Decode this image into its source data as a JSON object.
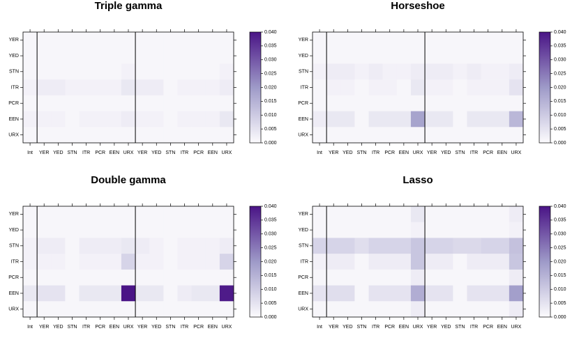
{
  "chart_data": [
    {
      "type": "heatmap",
      "title": "Triple gamma",
      "x": [
        "Int",
        "YER",
        "YED",
        "STN",
        "ITR",
        "PCR",
        "EEN",
        "URX",
        "YER",
        "YED",
        "STN",
        "ITR",
        "PCR",
        "EEN",
        "URX"
      ],
      "y": [
        "YER",
        "YED",
        "STN",
        "ITR",
        "PCR",
        "EEN",
        "URX"
      ],
      "values": [
        [
          0.001,
          0.001,
          0.001,
          0.001,
          0.001,
          0.001,
          0.001,
          0.001,
          0.001,
          0.001,
          0.001,
          0.001,
          0.001,
          0.001,
          0.001
        ],
        [
          0.001,
          0.001,
          0.001,
          0.001,
          0.001,
          0.001,
          0.001,
          0.001,
          0.001,
          0.001,
          0.001,
          0.001,
          0.001,
          0.001,
          0.001
        ],
        [
          0.001,
          0.001,
          0.001,
          0.001,
          0.001,
          0.001,
          0.001,
          0.002,
          0.001,
          0.001,
          0.001,
          0.001,
          0.001,
          0.001,
          0.002
        ],
        [
          0.002,
          0.003,
          0.003,
          0.002,
          0.002,
          0.002,
          0.002,
          0.004,
          0.003,
          0.003,
          0.001,
          0.002,
          0.002,
          0.002,
          0.003
        ],
        [
          0.001,
          0.001,
          0.001,
          0.001,
          0.001,
          0.001,
          0.001,
          0.001,
          0.001,
          0.001,
          0.001,
          0.001,
          0.001,
          0.001,
          0.001
        ],
        [
          0.002,
          0.002,
          0.002,
          0.001,
          0.002,
          0.002,
          0.002,
          0.003,
          0.002,
          0.002,
          0.001,
          0.002,
          0.002,
          0.002,
          0.004
        ],
        [
          0.001,
          0.001,
          0.001,
          0.001,
          0.001,
          0.001,
          0.001,
          0.001,
          0.001,
          0.001,
          0.001,
          0.001,
          0.001,
          0.001,
          0.001
        ]
      ],
      "zlim": [
        0,
        0.04
      ],
      "colors": [
        "#fcfbfd",
        "#9e9ac8",
        "#4a1486"
      ],
      "zticks": [
        {
          "value": 0,
          "label": "0.000"
        },
        {
          "value": 0.005,
          "label": "0.005"
        },
        {
          "value": 0.01,
          "label": "0.010"
        },
        {
          "value": 0.015,
          "label": "0.015"
        },
        {
          "value": 0.02,
          "label": "0.020"
        },
        {
          "value": 0.025,
          "label": "0.025"
        },
        {
          "value": 0.03,
          "label": "0.030"
        },
        {
          "value": 0.035,
          "label": "0.035"
        },
        {
          "value": 0.04,
          "label": "0.040"
        }
      ]
    },
    {
      "type": "heatmap",
      "title": "Horseshoe",
      "x": [
        "Int",
        "YER",
        "YED",
        "STN",
        "ITR",
        "PCR",
        "EEN",
        "URX",
        "YER",
        "YED",
        "STN",
        "ITR",
        "PCR",
        "EEN",
        "URX"
      ],
      "y": [
        "YER",
        "YED",
        "STN",
        "ITR",
        "PCR",
        "EEN",
        "URX"
      ],
      "values": [
        [
          0.001,
          0.001,
          0.001,
          0.001,
          0.001,
          0.001,
          0.001,
          0.001,
          0.001,
          0.001,
          0.001,
          0.001,
          0.001,
          0.001,
          0.001
        ],
        [
          0.001,
          0.001,
          0.001,
          0.001,
          0.001,
          0.001,
          0.001,
          0.001,
          0.001,
          0.001,
          0.001,
          0.001,
          0.001,
          0.001,
          0.001
        ],
        [
          0.002,
          0.003,
          0.003,
          0.002,
          0.003,
          0.002,
          0.002,
          0.003,
          0.003,
          0.003,
          0.002,
          0.003,
          0.002,
          0.002,
          0.003
        ],
        [
          0.001,
          0.002,
          0.002,
          0.001,
          0.002,
          0.002,
          0.001,
          0.004,
          0.002,
          0.002,
          0.001,
          0.002,
          0.002,
          0.002,
          0.005
        ],
        [
          0.001,
          0.001,
          0.001,
          0.001,
          0.001,
          0.001,
          0.001,
          0.001,
          0.001,
          0.001,
          0.001,
          0.001,
          0.001,
          0.001,
          0.001
        ],
        [
          0.003,
          0.004,
          0.004,
          0.001,
          0.004,
          0.004,
          0.004,
          0.018,
          0.004,
          0.004,
          0.001,
          0.004,
          0.004,
          0.004,
          0.014
        ],
        [
          0.001,
          0.001,
          0.001,
          0.001,
          0.001,
          0.001,
          0.001,
          0.001,
          0.001,
          0.001,
          0.001,
          0.001,
          0.001,
          0.001,
          0.001
        ]
      ],
      "zlim": [
        0,
        0.04
      ],
      "colors": [
        "#fcfbfd",
        "#9e9ac8",
        "#4a1486"
      ],
      "zticks": [
        {
          "value": 0,
          "label": "0.000"
        },
        {
          "value": 0.005,
          "label": "0.005"
        },
        {
          "value": 0.01,
          "label": "0.010"
        },
        {
          "value": 0.015,
          "label": "0.015"
        },
        {
          "value": 0.02,
          "label": "0.020"
        },
        {
          "value": 0.025,
          "label": "0.025"
        },
        {
          "value": 0.03,
          "label": "0.030"
        },
        {
          "value": 0.035,
          "label": "0.035"
        },
        {
          "value": 0.04,
          "label": "0.040"
        }
      ]
    },
    {
      "type": "heatmap",
      "title": "Double gamma",
      "x": [
        "Int",
        "YER",
        "YED",
        "STN",
        "ITR",
        "PCR",
        "EEN",
        "URX",
        "YER",
        "YED",
        "STN",
        "ITR",
        "PCR",
        "EEN",
        "URX"
      ],
      "y": [
        "YER",
        "YED",
        "STN",
        "ITR",
        "PCR",
        "EEN",
        "URX"
      ],
      "values": [
        [
          0.001,
          0.001,
          0.001,
          0.001,
          0.001,
          0.001,
          0.001,
          0.001,
          0.001,
          0.001,
          0.001,
          0.001,
          0.001,
          0.001,
          0.001
        ],
        [
          0.001,
          0.001,
          0.001,
          0.001,
          0.001,
          0.001,
          0.001,
          0.001,
          0.001,
          0.001,
          0.001,
          0.001,
          0.001,
          0.001,
          0.001
        ],
        [
          0.002,
          0.003,
          0.003,
          0.001,
          0.003,
          0.003,
          0.003,
          0.004,
          0.003,
          0.002,
          0.001,
          0.002,
          0.002,
          0.002,
          0.003
        ],
        [
          0.002,
          0.002,
          0.002,
          0.001,
          0.002,
          0.002,
          0.002,
          0.008,
          0.002,
          0.002,
          0.001,
          0.002,
          0.002,
          0.002,
          0.008
        ],
        [
          0.001,
          0.001,
          0.001,
          0.001,
          0.001,
          0.001,
          0.001,
          0.001,
          0.001,
          0.001,
          0.001,
          0.001,
          0.001,
          0.001,
          0.001
        ],
        [
          0.004,
          0.005,
          0.005,
          0.001,
          0.004,
          0.004,
          0.004,
          0.04,
          0.004,
          0.004,
          0.001,
          0.003,
          0.004,
          0.004,
          0.039
        ],
        [
          0.001,
          0.001,
          0.001,
          0.001,
          0.001,
          0.001,
          0.001,
          0.001,
          0.001,
          0.001,
          0.001,
          0.001,
          0.001,
          0.001,
          0.001
        ]
      ],
      "zlim": [
        0,
        0.04
      ],
      "colors": [
        "#fcfbfd",
        "#9e9ac8",
        "#4a1486"
      ],
      "zticks": [
        {
          "value": 0,
          "label": "0.000"
        },
        {
          "value": 0.005,
          "label": "0.005"
        },
        {
          "value": 0.01,
          "label": "0.010"
        },
        {
          "value": 0.015,
          "label": "0.015"
        },
        {
          "value": 0.02,
          "label": "0.020"
        },
        {
          "value": 0.025,
          "label": "0.025"
        },
        {
          "value": 0.03,
          "label": "0.030"
        },
        {
          "value": 0.035,
          "label": "0.035"
        },
        {
          "value": 0.04,
          "label": "0.040"
        }
      ]
    },
    {
      "type": "heatmap",
      "title": "Lasso",
      "x": [
        "Int",
        "YER",
        "YED",
        "STN",
        "ITR",
        "PCR",
        "EEN",
        "URX",
        "YER",
        "YED",
        "STN",
        "ITR",
        "PCR",
        "EEN",
        "URX"
      ],
      "y": [
        "YER",
        "YED",
        "STN",
        "ITR",
        "PCR",
        "EEN",
        "URX"
      ],
      "values": [
        [
          0.001,
          0.001,
          0.001,
          0.001,
          0.001,
          0.001,
          0.001,
          0.004,
          0.001,
          0.001,
          0.001,
          0.001,
          0.001,
          0.001,
          0.003
        ],
        [
          0.001,
          0.001,
          0.001,
          0.001,
          0.001,
          0.001,
          0.001,
          0.002,
          0.001,
          0.001,
          0.001,
          0.001,
          0.001,
          0.001,
          0.002
        ],
        [
          0.008,
          0.008,
          0.008,
          0.006,
          0.008,
          0.008,
          0.008,
          0.011,
          0.008,
          0.008,
          0.007,
          0.007,
          0.008,
          0.008,
          0.012
        ],
        [
          0.002,
          0.003,
          0.003,
          0.001,
          0.003,
          0.003,
          0.003,
          0.011,
          0.003,
          0.003,
          0.001,
          0.003,
          0.003,
          0.003,
          0.011
        ],
        [
          0.001,
          0.001,
          0.001,
          0.001,
          0.001,
          0.001,
          0.001,
          0.003,
          0.001,
          0.001,
          0.001,
          0.001,
          0.001,
          0.001,
          0.003
        ],
        [
          0.005,
          0.006,
          0.006,
          0.001,
          0.005,
          0.005,
          0.005,
          0.016,
          0.005,
          0.005,
          0.001,
          0.005,
          0.005,
          0.005,
          0.019
        ],
        [
          0.001,
          0.001,
          0.001,
          0.001,
          0.001,
          0.001,
          0.001,
          0.003,
          0.001,
          0.001,
          0.001,
          0.001,
          0.001,
          0.001,
          0.003
        ]
      ],
      "zlim": [
        0,
        0.04
      ],
      "colors": [
        "#fcfbfd",
        "#9e9ac8",
        "#4a1486"
      ],
      "zticks": [
        {
          "value": 0,
          "label": "0.000"
        },
        {
          "value": 0.005,
          "label": "0.005"
        },
        {
          "value": 0.01,
          "label": "0.010"
        },
        {
          "value": 0.015,
          "label": "0.015"
        },
        {
          "value": 0.02,
          "label": "0.020"
        },
        {
          "value": 0.025,
          "label": "0.025"
        },
        {
          "value": 0.03,
          "label": "0.030"
        },
        {
          "value": 0.035,
          "label": "0.035"
        },
        {
          "value": 0.04,
          "label": "0.040"
        }
      ]
    }
  ]
}
